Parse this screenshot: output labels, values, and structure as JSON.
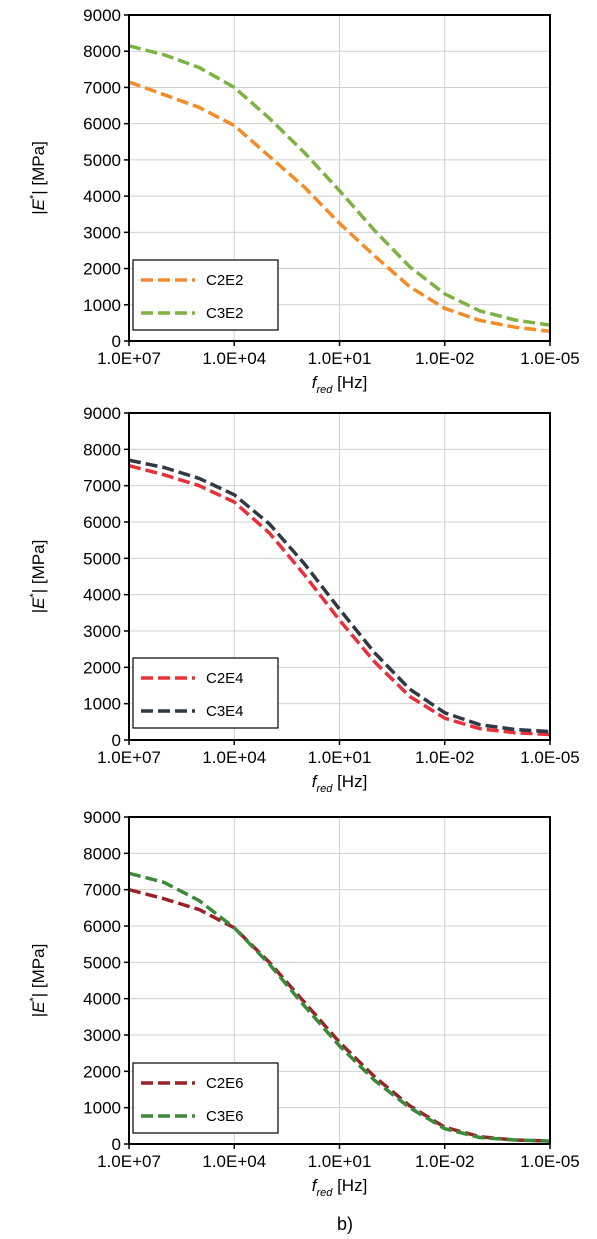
{
  "caption": "b)",
  "chart_data": [
    {
      "type": "line",
      "xscale": "log",
      "x_reversed": true,
      "xlim": [
        10000000,
        1e-05
      ],
      "ylim": [
        0,
        9000
      ],
      "xticks": [
        "1.0E+07",
        "1.0E+04",
        "1.0E+01",
        "1.0E-02",
        "1.0E-05"
      ],
      "yticks": [
        "0",
        "1000",
        "2000",
        "3000",
        "4000",
        "5000",
        "6000",
        "7000",
        "8000",
        "9000"
      ],
      "ylabel": {
        "prefix": "|",
        "main": "E",
        "sup": "*",
        "suffix": "| [MPa]"
      },
      "xlabel": {
        "main": "f",
        "sub": "red",
        "unit": " [Hz]"
      },
      "grid": true,
      "legend_position": "bottom-left",
      "series": [
        {
          "name": "C2E2",
          "color": "#F28C28",
          "x": [
            10000000,
            1000000,
            100000,
            10000,
            1000,
            100,
            10,
            1,
            0.1,
            0.01,
            0.001,
            0.0001,
            1e-05
          ],
          "y": [
            7150,
            6800,
            6450,
            5950,
            5100,
            4250,
            3250,
            2350,
            1500,
            900,
            570,
            380,
            270
          ]
        },
        {
          "name": "C3E2",
          "color": "#7CB342",
          "x": [
            10000000,
            1000000,
            100000,
            10000,
            1000,
            100,
            10,
            1,
            0.1,
            0.01,
            0.001,
            0.0001,
            1e-05
          ],
          "y": [
            8150,
            7900,
            7550,
            7000,
            6150,
            5200,
            4150,
            3050,
            2050,
            1300,
            830,
            580,
            440
          ]
        }
      ]
    },
    {
      "type": "line",
      "xscale": "log",
      "x_reversed": true,
      "xlim": [
        10000000,
        1e-05
      ],
      "ylim": [
        0,
        9000
      ],
      "xticks": [
        "1.0E+07",
        "1.0E+04",
        "1.0E+01",
        "1.0E-02",
        "1.0E-05"
      ],
      "yticks": [
        "0",
        "1000",
        "2000",
        "3000",
        "4000",
        "5000",
        "6000",
        "7000",
        "8000",
        "9000"
      ],
      "ylabel": {
        "prefix": "|",
        "main": "E",
        "sup": "*",
        "suffix": "| [MPa]"
      },
      "xlabel": {
        "main": "f",
        "sub": "red",
        "unit": " [Hz]"
      },
      "grid": true,
      "legend_position": "bottom-left",
      "series": [
        {
          "name": "C2E4",
          "color": "#E8303A",
          "x": [
            10000000,
            1000000,
            100000,
            10000,
            1000,
            100,
            10,
            1,
            0.1,
            0.01,
            0.001,
            0.0001,
            1e-05
          ],
          "y": [
            7550,
            7300,
            7000,
            6550,
            5700,
            4550,
            3300,
            2150,
            1200,
            600,
            310,
            200,
            150
          ]
        },
        {
          "name": "C3E4",
          "color": "#2F3A45",
          "x": [
            10000000,
            1000000,
            100000,
            10000,
            1000,
            100,
            10,
            1,
            0.1,
            0.01,
            0.001,
            0.0001,
            1e-05
          ],
          "y": [
            7700,
            7500,
            7200,
            6750,
            5950,
            4850,
            3600,
            2400,
            1400,
            750,
            420,
            290,
            230
          ]
        }
      ]
    },
    {
      "type": "line",
      "xscale": "log",
      "x_reversed": true,
      "xlim": [
        10000000,
        1e-05
      ],
      "ylim": [
        0,
        9000
      ],
      "xticks": [
        "1.0E+07",
        "1.0E+04",
        "1.0E+01",
        "1.0E-02",
        "1.0E-05"
      ],
      "yticks": [
        "0",
        "1000",
        "2000",
        "3000",
        "4000",
        "5000",
        "6000",
        "7000",
        "8000",
        "9000"
      ],
      "ylabel": {
        "prefix": "|",
        "main": "E",
        "sup": "*",
        "suffix": "| [MPa]"
      },
      "xlabel": {
        "main": "f",
        "sub": "red",
        "unit": " [Hz]"
      },
      "grid": true,
      "legend_position": "bottom-left",
      "series": [
        {
          "name": "C2E6",
          "color": "#9B2226",
          "x": [
            10000000,
            1000000,
            100000,
            10000,
            1000,
            100,
            10,
            1,
            0.1,
            0.01,
            0.001,
            0.0001,
            1e-05
          ],
          "y": [
            7000,
            6750,
            6450,
            5950,
            5000,
            3900,
            2800,
            1850,
            1050,
            460,
            200,
            110,
            80
          ]
        },
        {
          "name": "C3E6",
          "color": "#3A8A3A",
          "x": [
            10000000,
            1000000,
            100000,
            10000,
            1000,
            100,
            10,
            1,
            0.1,
            0.01,
            0.001,
            0.0001,
            1e-05
          ],
          "y": [
            7450,
            7200,
            6700,
            5950,
            4950,
            3800,
            2700,
            1750,
            1000,
            420,
            180,
            110,
            80
          ]
        }
      ]
    }
  ]
}
